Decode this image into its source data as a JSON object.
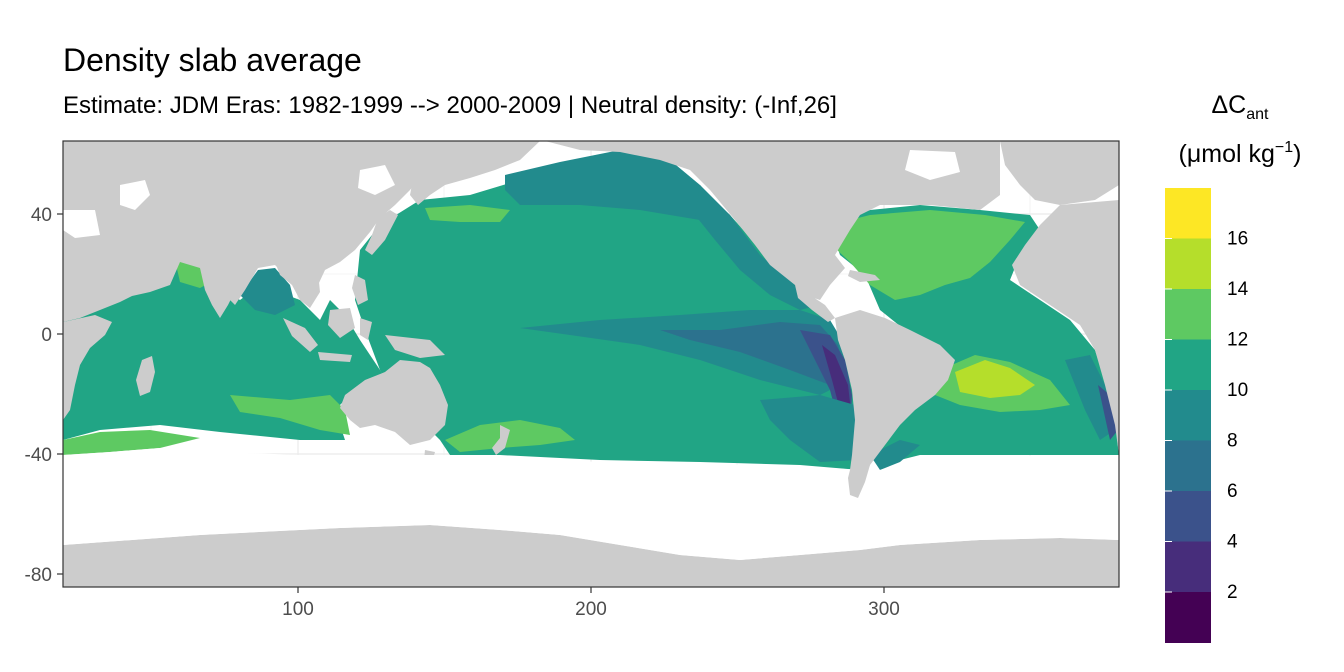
{
  "title": "Density slab average",
  "subtitle": "Estimate: JDM Eras: 1982-1999 --> 2000-2009 | Neutral density: (-Inf,26]",
  "map": {
    "type": "raster-map",
    "x_ticks": [
      100,
      200,
      300
    ],
    "y_ticks": [
      40,
      0,
      -40,
      -80
    ],
    "x_tick_labels": [
      "100",
      "200",
      "300"
    ],
    "y_tick_labels": [
      "40",
      "0",
      "-40",
      "-80"
    ],
    "land_color": "#cccccc",
    "grid": true
  },
  "legend": {
    "title_symbol": "ΔC",
    "title_subscript": "ant",
    "unit_prefix": "(μmol kg",
    "unit_exponent": "−1",
    "unit_suffix": ")",
    "breaks": [
      "16",
      "14",
      "12",
      "10",
      "8",
      "6",
      "4",
      "2"
    ],
    "colors": [
      "#fde725",
      "#b5de2b",
      "#5ec962",
      "#21a585",
      "#228b8d",
      "#2c728e",
      "#3b528b",
      "#472d7b",
      "#440154"
    ]
  },
  "chart_data": {
    "type": "heatmap",
    "title": "Density slab average",
    "subtitle": "Estimate: JDM Eras: 1982-1999 --> 2000-2009 | Neutral density: (-Inf,26]",
    "xlim": [
      20,
      380
    ],
    "ylim": [
      -85,
      65
    ],
    "x_ticks": [
      100,
      200,
      300
    ],
    "y_ticks": [
      -80,
      -40,
      0,
      40
    ],
    "color_breaks": [
      2,
      4,
      6,
      8,
      10,
      12,
      14,
      16
    ],
    "colorbar_title": "ΔCant (μmol kg−1)"
  }
}
